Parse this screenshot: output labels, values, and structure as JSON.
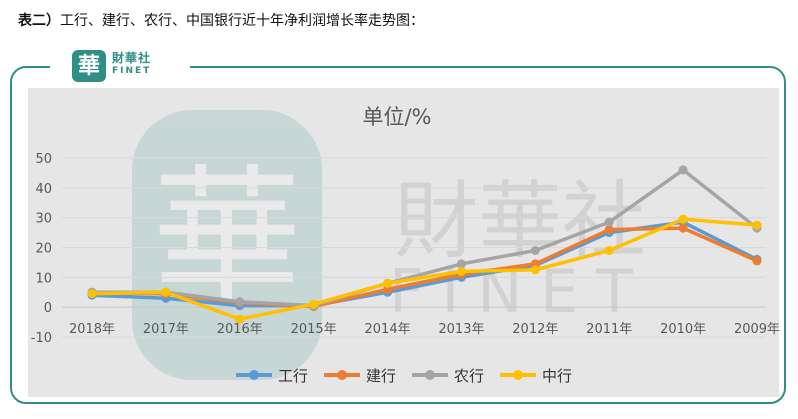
{
  "caption": {
    "prefix": "表二）",
    "text": "工行、建行、农行、中国银行近十年净利润增长率走势图："
  },
  "brand": {
    "glyph": "華",
    "name": "財華社",
    "sub": "FINET",
    "watermark_text": "財華社",
    "watermark_sub": "FINET",
    "color": "#2f8f86"
  },
  "chart_data": {
    "type": "line",
    "title": "单位/%",
    "xlabel": "",
    "ylabel": "",
    "categories": [
      "2018年",
      "2017年",
      "2016年",
      "2015年",
      "2014年",
      "2013年",
      "2012年",
      "2011年",
      "2010年",
      "2009年"
    ],
    "ylim": [
      -10,
      50
    ],
    "yticks": [
      -10,
      0,
      10,
      20,
      30,
      40,
      50
    ],
    "grid": true,
    "legend_position": "bottom",
    "series": [
      {
        "name": "工行",
        "color": "#5b9bd5",
        "values": [
          4,
          3,
          0.5,
          0.5,
          5,
          10,
          14,
          25,
          28.5,
          16
        ]
      },
      {
        "name": "建行",
        "color": "#ed7d31",
        "values": [
          5,
          4.5,
          1.5,
          0.2,
          6,
          11,
          14.5,
          26,
          26.5,
          15.5
        ]
      },
      {
        "name": "农行",
        "color": "#a5a5a5",
        "values": [
          5,
          5,
          1.8,
          0.5,
          8,
          14.5,
          19,
          28.5,
          46,
          26.5
        ]
      },
      {
        "name": "中行",
        "color": "#ffc000",
        "values": [
          4.5,
          5,
          -4,
          1,
          8,
          12,
          12.5,
          19,
          29.5,
          27.5
        ]
      }
    ]
  }
}
